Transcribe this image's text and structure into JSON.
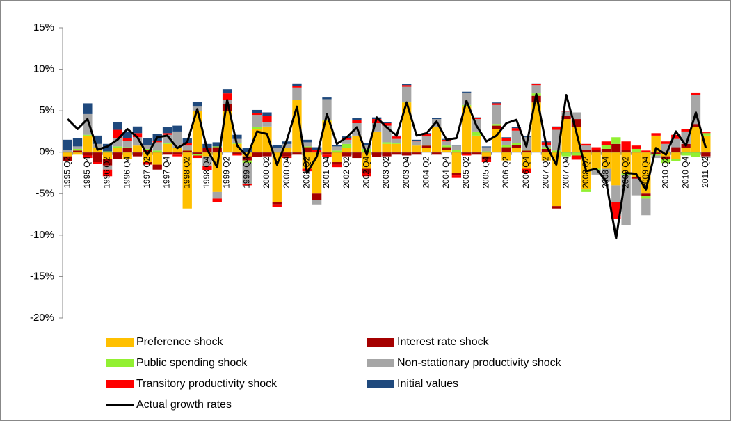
{
  "chart_data": {
    "type": "bar",
    "stacked": true,
    "categories": [
      "1995 Q2",
      null,
      "1995 Q4",
      null,
      "1996 Q2",
      null,
      "1996 Q4",
      null,
      "1997 Q2",
      null,
      "1997 Q4",
      null,
      "1998 Q2",
      null,
      "1998 Q4",
      null,
      "1999 Q2",
      null,
      "1999 Q4",
      null,
      "2000 Q2",
      null,
      "2000 Q4",
      null,
      "2001 Q2",
      null,
      "2001 Q4",
      null,
      "2002 Q2",
      null,
      "2002 Q4",
      null,
      "2003 Q2",
      null,
      "2003 Q4",
      null,
      "2004 Q2",
      null,
      "2004 Q4",
      null,
      "2005 Q2",
      null,
      "2005 Q4",
      null,
      "2006 Q2",
      null,
      "2006 Q4",
      null,
      "2007 Q2",
      null,
      "2007 Q4",
      null,
      "2008 Q2",
      null,
      "2008 Q4",
      null,
      "2009 Q2",
      null,
      "2009 Q4",
      null,
      "2010 Q2",
      null,
      "2010 Q4",
      null,
      "2011 Q2"
    ],
    "series": [
      {
        "name": "Preference shock",
        "color": "#ffc000",
        "values": [
          -0.5,
          -0.3,
          2.0,
          0.5,
          -0.8,
          0.5,
          -0.8,
          0.8,
          -1.2,
          -1.5,
          1.0,
          0.5,
          -6.8,
          5.0,
          -0.5,
          -4.8,
          5.0,
          1.0,
          -0.5,
          2.8,
          3.0,
          -6.0,
          0.5,
          6.3,
          -2.0,
          -5.0,
          3.8,
          -1.2,
          0.5,
          2.0,
          -2.0,
          2.5,
          1.0,
          1.0,
          6.0,
          0.8,
          0.5,
          3.0,
          0.3,
          -2.5,
          5.5,
          2.0,
          -0.5,
          2.8,
          -1.0,
          0.5,
          -2.0,
          6.0,
          -1.0,
          -6.5,
          4.0,
          3.0,
          -4.5,
          -2.0,
          -2.0,
          -4.0,
          -2.5,
          -3.0,
          -5.0,
          2.0,
          -0.5,
          -0.8,
          0.5,
          3.0,
          2.0
        ]
      },
      {
        "name": "Interest rate shock",
        "color": "#a50000",
        "values": [
          -0.6,
          0.2,
          -0.4,
          -1.2,
          -0.8,
          -0.8,
          0.5,
          -0.5,
          0.3,
          -0.6,
          -0.3,
          -0.3,
          0.2,
          -0.2,
          0.5,
          0.6,
          0.8,
          -0.2,
          -0.5,
          -0.6,
          -0.5,
          -0.3,
          -0.5,
          -0.3,
          0.6,
          -0.8,
          -0.3,
          -0.3,
          -0.5,
          -0.7,
          -0.5,
          -0.6,
          -0.5,
          -0.3,
          -0.4,
          -0.3,
          0.3,
          -0.3,
          0.3,
          -0.3,
          -0.2,
          -0.3,
          -0.4,
          0.4,
          0.6,
          0.4,
          0.2,
          0.8,
          0.4,
          -0.3,
          0.4,
          1.0,
          0.3,
          0.3,
          0.4,
          1.0,
          0.3,
          -0.2,
          -0.3,
          -0.2,
          -0.3,
          0.6,
          0.5,
          0.4,
          -0.5
        ]
      },
      {
        "name": "Public spending shock",
        "color": "#92f032",
        "values": [
          0,
          0.2,
          0.1,
          0,
          0.1,
          0.2,
          0.1,
          0,
          0.1,
          0.2,
          0.1,
          0,
          0.1,
          -0.2,
          0,
          0.1,
          0,
          0.1,
          -0.3,
          0.2,
          0.1,
          0,
          0,
          0,
          0.1,
          0,
          0.1,
          0.2,
          0.5,
          0,
          0.4,
          0,
          0.2,
          0.1,
          0.1,
          0,
          0.1,
          0,
          0.2,
          0.3,
          0.2,
          0.5,
          0.1,
          0.2,
          0.3,
          0.2,
          0.1,
          0.3,
          0.2,
          0.2,
          -0.5,
          -0.4,
          -0.3,
          -0.2,
          0.5,
          0.8,
          -0.3,
          0.4,
          -0.3,
          -0.2,
          -0.5,
          -0.3,
          -0.4,
          -0.6,
          0.3
        ]
      },
      {
        "name": "Non-stationary productivity shock",
        "color": "#a6a6a6",
        "values": [
          0.3,
          0.3,
          2.5,
          0.5,
          -0.5,
          1.0,
          0.8,
          1.0,
          0.5,
          1.0,
          1.0,
          2.0,
          0.5,
          0.5,
          -1.2,
          -0.8,
          0.5,
          0.5,
          -2.5,
          1.5,
          0.5,
          0.5,
          0.5,
          1.5,
          0.5,
          -0.5,
          2.5,
          0.5,
          0.5,
          1.5,
          0.5,
          1.0,
          2.0,
          0.5,
          1.8,
          0.5,
          1.0,
          1.0,
          0.5,
          0.5,
          1.5,
          1.5,
          0.5,
          2.3,
          0.5,
          1.5,
          1.5,
          1.0,
          0.3,
          2.5,
          0.5,
          0.8,
          0.5,
          -0.5,
          -1.5,
          -2.0,
          -6.0,
          -2.0,
          -2.0,
          -0.3,
          1.0,
          1.0,
          1.5,
          3.5,
          -0.2
        ]
      },
      {
        "name": "Transitory productivity shock",
        "color": "#ff0000",
        "values": [
          0,
          0,
          -0.3,
          -0.2,
          -0.8,
          1.0,
          0.3,
          0.5,
          -0.3,
          0.2,
          0.2,
          -0.2,
          0.3,
          -0.3,
          -0.5,
          -0.4,
          0.8,
          -0.2,
          -0.2,
          0.2,
          0.8,
          -0.3,
          -0.2,
          0.2,
          -0.3,
          0.3,
          -0.3,
          -0.3,
          0.2,
          0.4,
          -0.4,
          0.5,
          0.3,
          0.3,
          0.2,
          0.1,
          0.3,
          0,
          0.2,
          -0.3,
          -0.2,
          0.1,
          -0.3,
          0.2,
          0.3,
          0.3,
          -0.5,
          0.1,
          0.3,
          0.3,
          0.1,
          -0.5,
          0.2,
          0.3,
          0.4,
          -2.0,
          1.0,
          0.4,
          0.2,
          0.3,
          0.3,
          0.5,
          0.3,
          0.3,
          0.1
        ]
      },
      {
        "name": "Initial values",
        "color": "#1f497d",
        "values": [
          1.2,
          1.0,
          1.3,
          1.0,
          0.9,
          0.9,
          0.8,
          0.8,
          0.8,
          0.8,
          0.7,
          0.7,
          0.6,
          0.6,
          0.5,
          0.5,
          0.5,
          0.5,
          0.5,
          0.4,
          0.4,
          0.4,
          0.3,
          0.3,
          0.3,
          0.3,
          0.2,
          0.2,
          0.2,
          0.2,
          0.2,
          0.2,
          0.1,
          0.1,
          0.1,
          0.1,
          0.1,
          0.1,
          0.1,
          0.1,
          0.1,
          0.1,
          0.1,
          0.1,
          0.1,
          0.1,
          0.1,
          0.1,
          0.1,
          0.1,
          0,
          0,
          0,
          0,
          0,
          0,
          0,
          0,
          0,
          0,
          0,
          0,
          0,
          0,
          0
        ]
      }
    ],
    "line": {
      "name": "Actual growth rates",
      "color": "#000000",
      "values": [
        4.0,
        2.8,
        4.0,
        0.3,
        0.7,
        1.5,
        2.8,
        1.8,
        -0.3,
        1.8,
        2.0,
        0.5,
        1.2,
        5.2,
        0.3,
        -1.8,
        6.3,
        0.8,
        -0.5,
        2.5,
        2.2,
        -1.5,
        1.5,
        5.5,
        -2.5,
        -0.5,
        4.6,
        1.0,
        1.8,
        3.0,
        -0.3,
        4.2,
        3.0,
        2.0,
        6.0,
        2.0,
        2.3,
        3.7,
        1.5,
        1.7,
        6.2,
        3.2,
        1.3,
        2.0,
        3.5,
        3.9,
        0.7,
        7.0,
        0.8,
        -1.5,
        6.9,
        2.5,
        -2.3,
        -2.0,
        -3.5,
        -10.4,
        -2.5,
        -2.6,
        -4.5,
        0.5,
        -0.3,
        2.5,
        0.8,
        4.8,
        0.5
      ]
    },
    "ylim": [
      -20,
      15
    ],
    "yticks": [
      {
        "value": -20,
        "label": "-20%"
      },
      {
        "value": -15,
        "label": "-15%"
      },
      {
        "value": -10,
        "label": "-10%"
      },
      {
        "value": -5,
        "label": "-5%"
      },
      {
        "value": 0,
        "label": "0%"
      },
      {
        "value": 5,
        "label": "5%"
      },
      {
        "value": 10,
        "label": "10%"
      },
      {
        "value": 15,
        "label": "15%"
      }
    ],
    "grid": false
  }
}
